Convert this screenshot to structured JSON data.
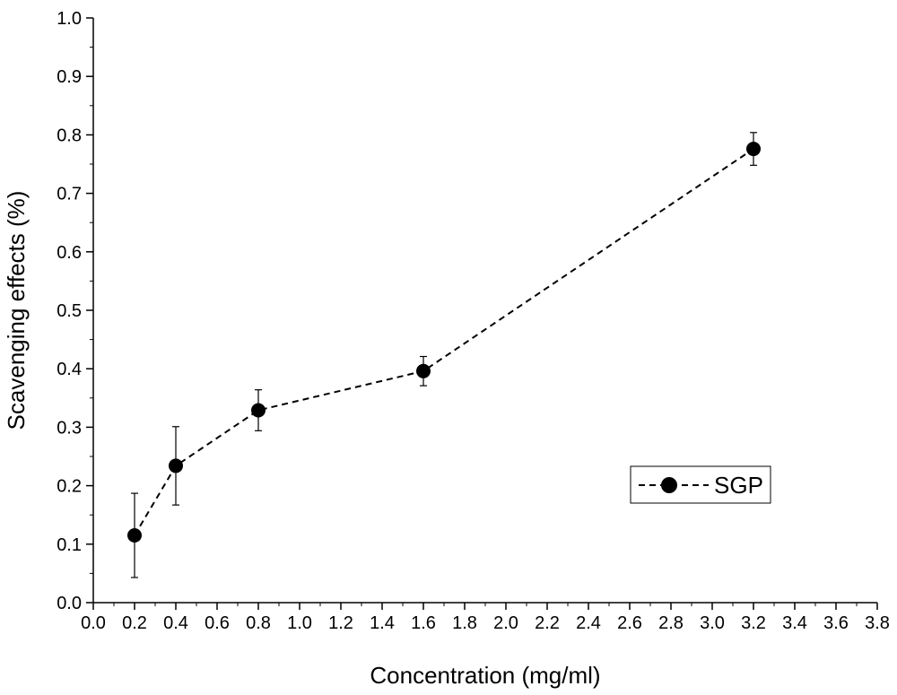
{
  "chart_data": {
    "type": "line",
    "xlabel": "Concentration (mg/ml)",
    "ylabel": "Scavenging effects (%)",
    "xlim": [
      0.0,
      3.8
    ],
    "ylim": [
      0.0,
      1.0
    ],
    "x_ticks": [
      "0.0",
      "0.2",
      "0.4",
      "0.6",
      "0.8",
      "1.0",
      "1.2",
      "1.4",
      "1.6",
      "1.8",
      "2.0",
      "2.2",
      "2.4",
      "2.6",
      "2.8",
      "3.0",
      "3.2",
      "3.4",
      "3.6",
      "3.8"
    ],
    "y_ticks": [
      "0.0",
      "0.1",
      "0.2",
      "0.3",
      "0.4",
      "0.5",
      "0.6",
      "0.7",
      "0.8",
      "0.9",
      "1.0"
    ],
    "grid": false,
    "legend_position": "right",
    "series": [
      {
        "name": "SGP",
        "line_style": "dashed",
        "marker": "filled-circle",
        "color": "#000000",
        "x": [
          0.2,
          0.4,
          0.8,
          1.6,
          3.2
        ],
        "y": [
          0.115,
          0.234,
          0.329,
          0.396,
          0.776
        ],
        "error": [
          0.072,
          0.067,
          0.035,
          0.025,
          0.028
        ]
      }
    ]
  }
}
